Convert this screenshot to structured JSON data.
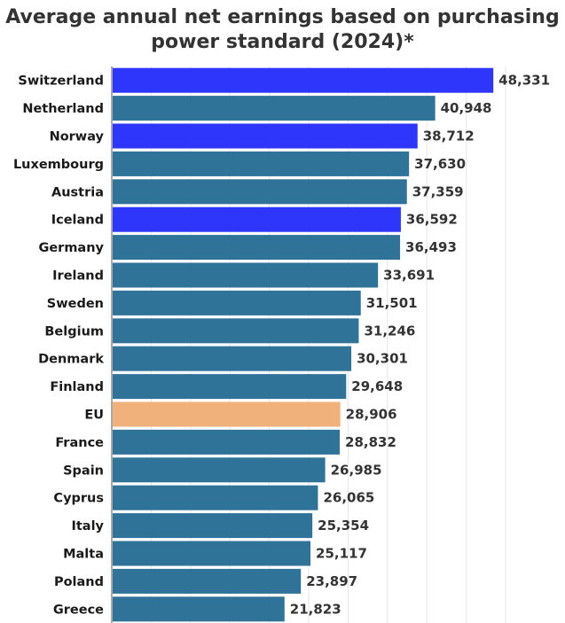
{
  "title_line1": "Average annual net earnings based on purchasing",
  "title_line2": "power standard (2024)*",
  "colors": {
    "default": "#2f7399",
    "highlight": "#2f36fb",
    "eu": "#f0b27a",
    "grid": "#e6e6e6",
    "axis": "#555555"
  },
  "chart_data": {
    "type": "bar",
    "orientation": "horizontal",
    "title": "Average annual net earnings based on purchasing power standard (2024)*",
    "xlim": [
      0,
      50000
    ],
    "grid": true,
    "categories": [
      "Switzerland",
      "Netherland",
      "Norway",
      "Luxembourg",
      "Austria",
      "Iceland",
      "Germany",
      "Ireland",
      "Sweden",
      "Belgium",
      "Denmark",
      "Finland",
      "EU",
      "France",
      "Spain",
      "Cyprus",
      "Italy",
      "Malta",
      "Poland",
      "Greece"
    ],
    "values": [
      48331,
      40948,
      38712,
      37630,
      37359,
      36592,
      36493,
      33691,
      31501,
      31246,
      30301,
      29648,
      28906,
      28832,
      26985,
      26065,
      25354,
      25117,
      23897,
      21823
    ],
    "value_labels": [
      "48,331",
      "40,948",
      "38,712",
      "37,630",
      "37,359",
      "36,592",
      "36,493",
      "33,691",
      "31,501",
      "31,246",
      "30,301",
      "29,648",
      "28,906",
      "28,832",
      "26,985",
      "26,065",
      "25,354",
      "25,117",
      "23,897",
      "21,823"
    ],
    "bar_colors": [
      "highlight",
      "default",
      "highlight",
      "default",
      "default",
      "highlight",
      "default",
      "default",
      "default",
      "default",
      "default",
      "default",
      "eu",
      "default",
      "default",
      "default",
      "default",
      "default",
      "default",
      "default"
    ]
  }
}
